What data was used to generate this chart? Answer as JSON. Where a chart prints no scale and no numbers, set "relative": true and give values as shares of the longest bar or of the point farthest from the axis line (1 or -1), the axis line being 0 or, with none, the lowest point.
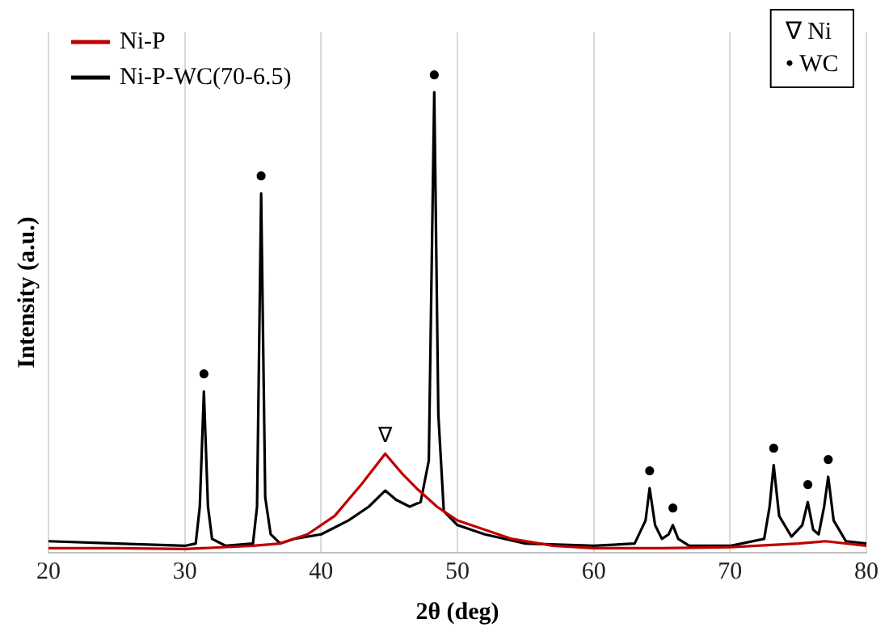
{
  "chart_data": {
    "type": "line",
    "xlabel": "2θ (deg)",
    "ylabel": "Intensity (a.u.)",
    "relative": true,
    "xlim": [
      20,
      80
    ],
    "xticks": [
      20,
      30,
      40,
      50,
      60,
      70,
      80
    ],
    "grid": "x",
    "legend": "top left",
    "marker": "none",
    "line_style": "solid",
    "series": [
      {
        "name": "Ni-P",
        "color": "#c00000",
        "x": [
          20,
          25,
          30,
          35,
          37,
          39,
          41,
          43,
          44.7,
          46,
          47,
          48.5,
          50,
          52,
          54,
          57,
          60,
          65,
          70,
          75,
          77,
          80
        ],
        "values": [
          0.01,
          0.01,
          0.008,
          0.015,
          0.02,
          0.04,
          0.08,
          0.15,
          0.215,
          0.17,
          0.14,
          0.1,
          0.07,
          0.05,
          0.03,
          0.015,
          0.01,
          0.01,
          0.012,
          0.02,
          0.025,
          0.015
        ]
      },
      {
        "name": "Ni-P-WC(70-6.5)",
        "color": "#000000",
        "x": [
          20,
          25,
          30,
          30.8,
          31.1,
          31.4,
          31.7,
          32,
          33,
          35,
          35.3,
          35.6,
          35.9,
          36.3,
          37,
          38,
          40,
          42,
          43.5,
          44.7,
          45.5,
          46.5,
          47.3,
          47.9,
          48.3,
          48.6,
          49,
          50,
          52,
          55,
          60,
          63,
          63.8,
          64.1,
          64.5,
          65,
          65.5,
          65.8,
          66.2,
          67,
          70,
          72.5,
          72.9,
          73.2,
          73.6,
          74.5,
          75.3,
          75.7,
          76.1,
          76.5,
          76.9,
          77.2,
          77.6,
          78.5,
          80
        ],
        "values": [
          0.025,
          0.02,
          0.015,
          0.02,
          0.1,
          0.35,
          0.1,
          0.03,
          0.015,
          0.02,
          0.1,
          0.78,
          0.12,
          0.04,
          0.02,
          0.03,
          0.04,
          0.07,
          0.1,
          0.135,
          0.115,
          0.1,
          0.11,
          0.2,
          1.0,
          0.3,
          0.09,
          0.06,
          0.04,
          0.02,
          0.015,
          0.02,
          0.07,
          0.14,
          0.06,
          0.03,
          0.04,
          0.06,
          0.03,
          0.015,
          0.015,
          0.03,
          0.1,
          0.19,
          0.08,
          0.035,
          0.06,
          0.11,
          0.05,
          0.04,
          0.1,
          0.165,
          0.07,
          0.025,
          0.02
        ]
      }
    ],
    "annotations": [
      {
        "text": "●",
        "x": 31.4,
        "y": 0.35
      },
      {
        "text": "●",
        "x": 35.6,
        "y": 0.78
      },
      {
        "text": "●",
        "x": 48.3,
        "y": 1.0
      },
      {
        "text": "∇",
        "x": 44.7,
        "y": 0.215
      },
      {
        "text": "●",
        "x": 64.1,
        "y": 0.14
      },
      {
        "text": "●",
        "x": 65.8,
        "y": 0.06
      },
      {
        "text": "●",
        "x": 73.2,
        "y": 0.19
      },
      {
        "text": "●",
        "x": 75.7,
        "y": 0.11
      },
      {
        "text": "●",
        "x": 77.2,
        "y": 0.165
      },
      "∇ Ni",
      "• WC"
    ]
  }
}
